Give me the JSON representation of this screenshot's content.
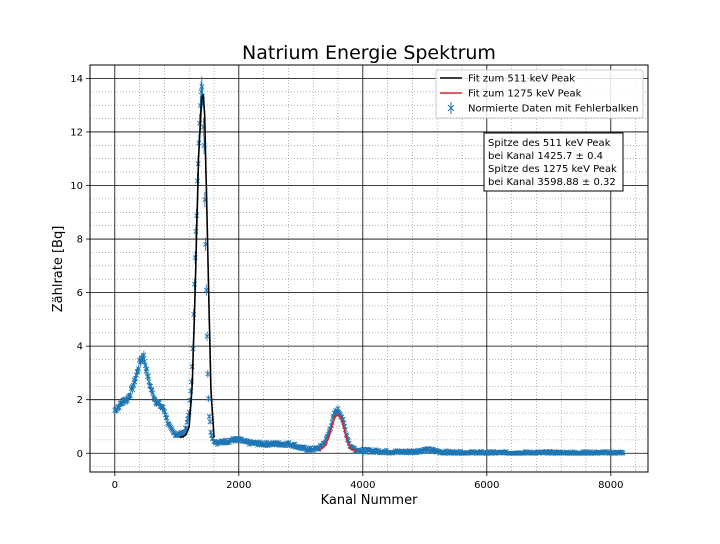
{
  "chart_data": {
    "type": "scatter",
    "title": "Natrium Energie Spektrum",
    "xlabel": "Kanal Nummer",
    "ylabel": "Zählrate [Bq]",
    "xlim": [
      -400,
      8600
    ],
    "ylim": [
      -0.7,
      14.5
    ],
    "xticks": [
      0,
      2000,
      4000,
      6000,
      8000
    ],
    "yticks": [
      0,
      2,
      4,
      6,
      8,
      10,
      12,
      14
    ],
    "grid": "major and minor",
    "legend_placement": "top-right",
    "colors": {
      "data": "#1f77b4",
      "fit511": "#000000",
      "fit1275": "#d62728"
    },
    "series": [
      {
        "name": "Normierte Daten mit Fehlerbalken",
        "kind": "data",
        "x": [
          0,
          40,
          80,
          120,
          160,
          200,
          240,
          280,
          320,
          360,
          400,
          440,
          470,
          500,
          530,
          560,
          600,
          650,
          700,
          750,
          800,
          850,
          900,
          950,
          1000,
          1050,
          1100,
          1150,
          1200,
          1230,
          1260,
          1290,
          1320,
          1350,
          1380,
          1400,
          1420,
          1440,
          1460,
          1480,
          1500,
          1520,
          1550,
          1580,
          1610,
          1650,
          1700,
          1800,
          1900,
          2000,
          2100,
          2200,
          2400,
          2600,
          2800,
          2900,
          3000,
          3100,
          3200,
          3300,
          3400,
          3450,
          3500,
          3550,
          3600,
          3650,
          3700,
          3750,
          3800,
          3900,
          4000,
          4200,
          4400,
          4600,
          4800,
          5000,
          5100,
          5200,
          5300,
          5500,
          6000,
          6500,
          7000,
          7500,
          8000,
          8200
        ],
        "y": [
          1.6,
          1.7,
          1.8,
          1.9,
          2.0,
          2.0,
          2.2,
          2.4,
          2.7,
          3.0,
          3.4,
          3.6,
          3.6,
          3.2,
          2.9,
          2.6,
          2.3,
          2.0,
          1.85,
          1.75,
          1.6,
          1.2,
          0.9,
          0.75,
          0.7,
          0.7,
          0.75,
          0.9,
          1.6,
          2.4,
          4.0,
          6.8,
          9.0,
          11.5,
          13.3,
          13.6,
          13.0,
          11.5,
          8.5,
          5.5,
          3.0,
          1.5,
          0.8,
          0.55,
          0.45,
          0.4,
          0.4,
          0.45,
          0.5,
          0.5,
          0.42,
          0.38,
          0.35,
          0.35,
          0.35,
          0.3,
          0.2,
          0.15,
          0.15,
          0.2,
          0.45,
          0.75,
          1.15,
          1.5,
          1.6,
          1.45,
          1.05,
          0.6,
          0.25,
          0.12,
          0.1,
          0.08,
          0.06,
          0.05,
          0.06,
          0.12,
          0.12,
          0.07,
          0.04,
          0.02,
          0.01,
          0.01,
          0.01,
          0.01,
          0.01,
          0.01
        ]
      },
      {
        "name": "Fit zum 511 keV Peak",
        "kind": "line",
        "x": [
          1050,
          1100,
          1150,
          1200,
          1250,
          1300,
          1350,
          1400,
          1425.7,
          1450,
          1500,
          1550,
          1600
        ],
        "y": [
          0.6,
          0.62,
          0.7,
          1.0,
          2.6,
          6.4,
          11.0,
          13.2,
          13.4,
          12.6,
          7.5,
          2.4,
          0.6
        ]
      },
      {
        "name": "Fit zum 1275 keV Peak",
        "kind": "line",
        "x": [
          3300,
          3400,
          3450,
          3500,
          3550,
          3598.88,
          3650,
          3700,
          3750,
          3800,
          3900
        ],
        "y": [
          0.1,
          0.3,
          0.6,
          1.0,
          1.35,
          1.45,
          1.3,
          0.9,
          0.45,
          0.18,
          0.08
        ]
      }
    ],
    "legend": [
      "Fit zum 511 keV Peak",
      "Fit zum 1275 keV Peak",
      "Normierte Daten mit Fehlerbalken"
    ],
    "annotation": [
      "Spitze des 511 keV Peak",
      "bei Kanal 1425.7 ± 0.4",
      "Spitze des 1275 keV Peak",
      "bei Kanal 3598.88 ± 0.32"
    ]
  }
}
